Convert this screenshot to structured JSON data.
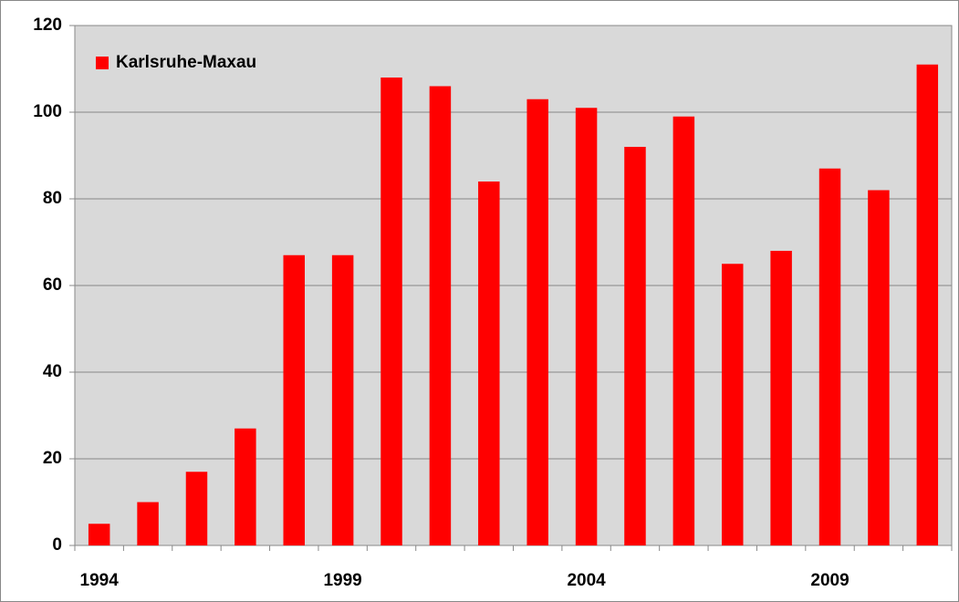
{
  "chart_data": {
    "type": "bar",
    "categories": [
      "1994",
      null,
      null,
      null,
      null,
      "1999",
      null,
      null,
      null,
      null,
      "2004",
      null,
      null,
      null,
      null,
      "2009",
      null,
      null
    ],
    "series": [
      {
        "name": "Karlsruhe-Maxau",
        "color": "#ff0000",
        "values": [
          5,
          10,
          17,
          27,
          67,
          67,
          108,
          106,
          84,
          103,
          101,
          92,
          99,
          65,
          68,
          87,
          82,
          111
        ]
      }
    ],
    "ylim": [
      0,
      120
    ],
    "yticks": [
      0,
      20,
      40,
      60,
      80,
      100,
      120
    ],
    "grid": true,
    "legend": "top-left"
  }
}
